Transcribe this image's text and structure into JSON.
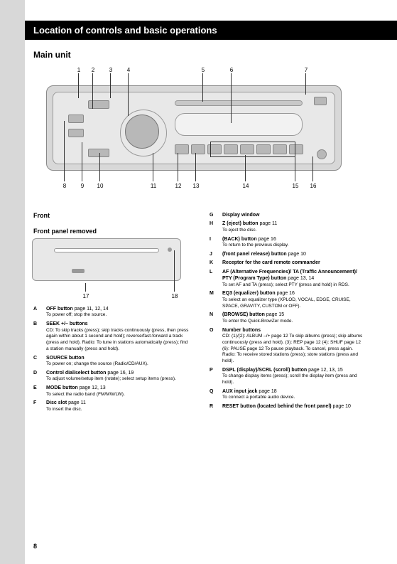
{
  "page": {
    "header_bar": "Location of controls and basic operations",
    "section": "Main unit",
    "front_label": "Front",
    "front_removed_label": "Front panel removed",
    "page_number": "8"
  },
  "callouts_top": [
    "1",
    "2",
    "3",
    "4",
    "5",
    "6",
    "7"
  ],
  "callouts_bottom": [
    "8",
    "9",
    "10",
    "11",
    "12",
    "13",
    "14",
    "15",
    "16"
  ],
  "callouts_small": [
    "17",
    "18"
  ],
  "list_left": [
    {
      "num": "A",
      "name": "OFF button",
      "pg": "page 11, 12, 14",
      "sub": "To power off; stop the source."
    },
    {
      "num": "B",
      "name": "SEEK +/– buttons",
      "pg": "",
      "sub": "CD:\nTo skip tracks (press); skip tracks continuously (press, then press again within about 1 second and hold); reverse/fast-forward a track (press and hold).\nRadio:\nTo tune in stations automatically (press); find a station manually (press and hold)."
    },
    {
      "num": "C",
      "name": "SOURCE button",
      "pg": "",
      "sub": "To power on; change the source (Radio/CD/AUX)."
    },
    {
      "num": "D",
      "name": "Control dial/select button",
      "pg": "page 16, 19",
      "sub": "To adjust volume/setup item (rotate); select setup items (press)."
    },
    {
      "num": "E",
      "name": "MODE button",
      "pg": "page 12, 13",
      "sub": "To select the radio band (FM/MW/LW)."
    },
    {
      "num": "F",
      "name": "Disc slot",
      "pg": "page 11",
      "sub": "To insert the disc."
    }
  ],
  "list_right": [
    {
      "num": "G",
      "name": "Display window",
      "pg": "",
      "sub": ""
    },
    {
      "num": "H",
      "name": "Z (eject) button",
      "pg": "page 11",
      "sub": "To eject the disc."
    },
    {
      "num": "I",
      "name": "  (BACK) button",
      "pg": "page 16",
      "sub": "To return to the previous display."
    },
    {
      "num": "J",
      "name": "(front panel release) button",
      "pg": "page 10",
      "sub": ""
    },
    {
      "num": "K",
      "name": "Receptor for the card remote commander",
      "pg": "",
      "sub": ""
    },
    {
      "num": "L",
      "name": "AF (Alternative Frequencies)/ TA (Traffic Announcement)/ PTY (Program Type) button",
      "pg": "page 13, 14",
      "sub": "To set AF and TA (press); select PTY (press and hold) in RDS."
    },
    {
      "num": "M",
      "name": "EQ3 (equalizer) button",
      "pg": "page 16",
      "sub": "To select an equalizer type (XPLOD, VOCAL, EDGE, CRUISE, SPACE, GRAVITY, CUSTOM or OFF)."
    },
    {
      "num": "N",
      "name": "  (BROWSE) button",
      "pg": "page 15",
      "sub": "To enter the Quick-BrowZer mode."
    },
    {
      "num": "O",
      "name": "Number buttons",
      "pg": "",
      "sub": "CD:\n(1)/(2): ALBUM –/+ page 12\nTo skip albums (press); skip albums continuously (press and hold).\n(3): REP page 12\n(4): SHUF page 12\n(6): PAUSE page 12\nTo pause playback. To cancel, press again.\nRadio:\nTo receive stored stations (press); store stations (press and hold)."
    },
    {
      "num": "P",
      "name": "DSPL (display)/SCRL (scroll) button",
      "pg": "page 12, 13, 15",
      "sub": "To change display items (press); scroll the display item (press and hold)."
    },
    {
      "num": "Q",
      "name": "AUX input jack",
      "pg": "page 18",
      "sub": "To connect a portable audio device."
    },
    {
      "num": "R",
      "name": "RESET button (located behind the front panel)",
      "pg": "page 10",
      "sub": ""
    }
  ]
}
